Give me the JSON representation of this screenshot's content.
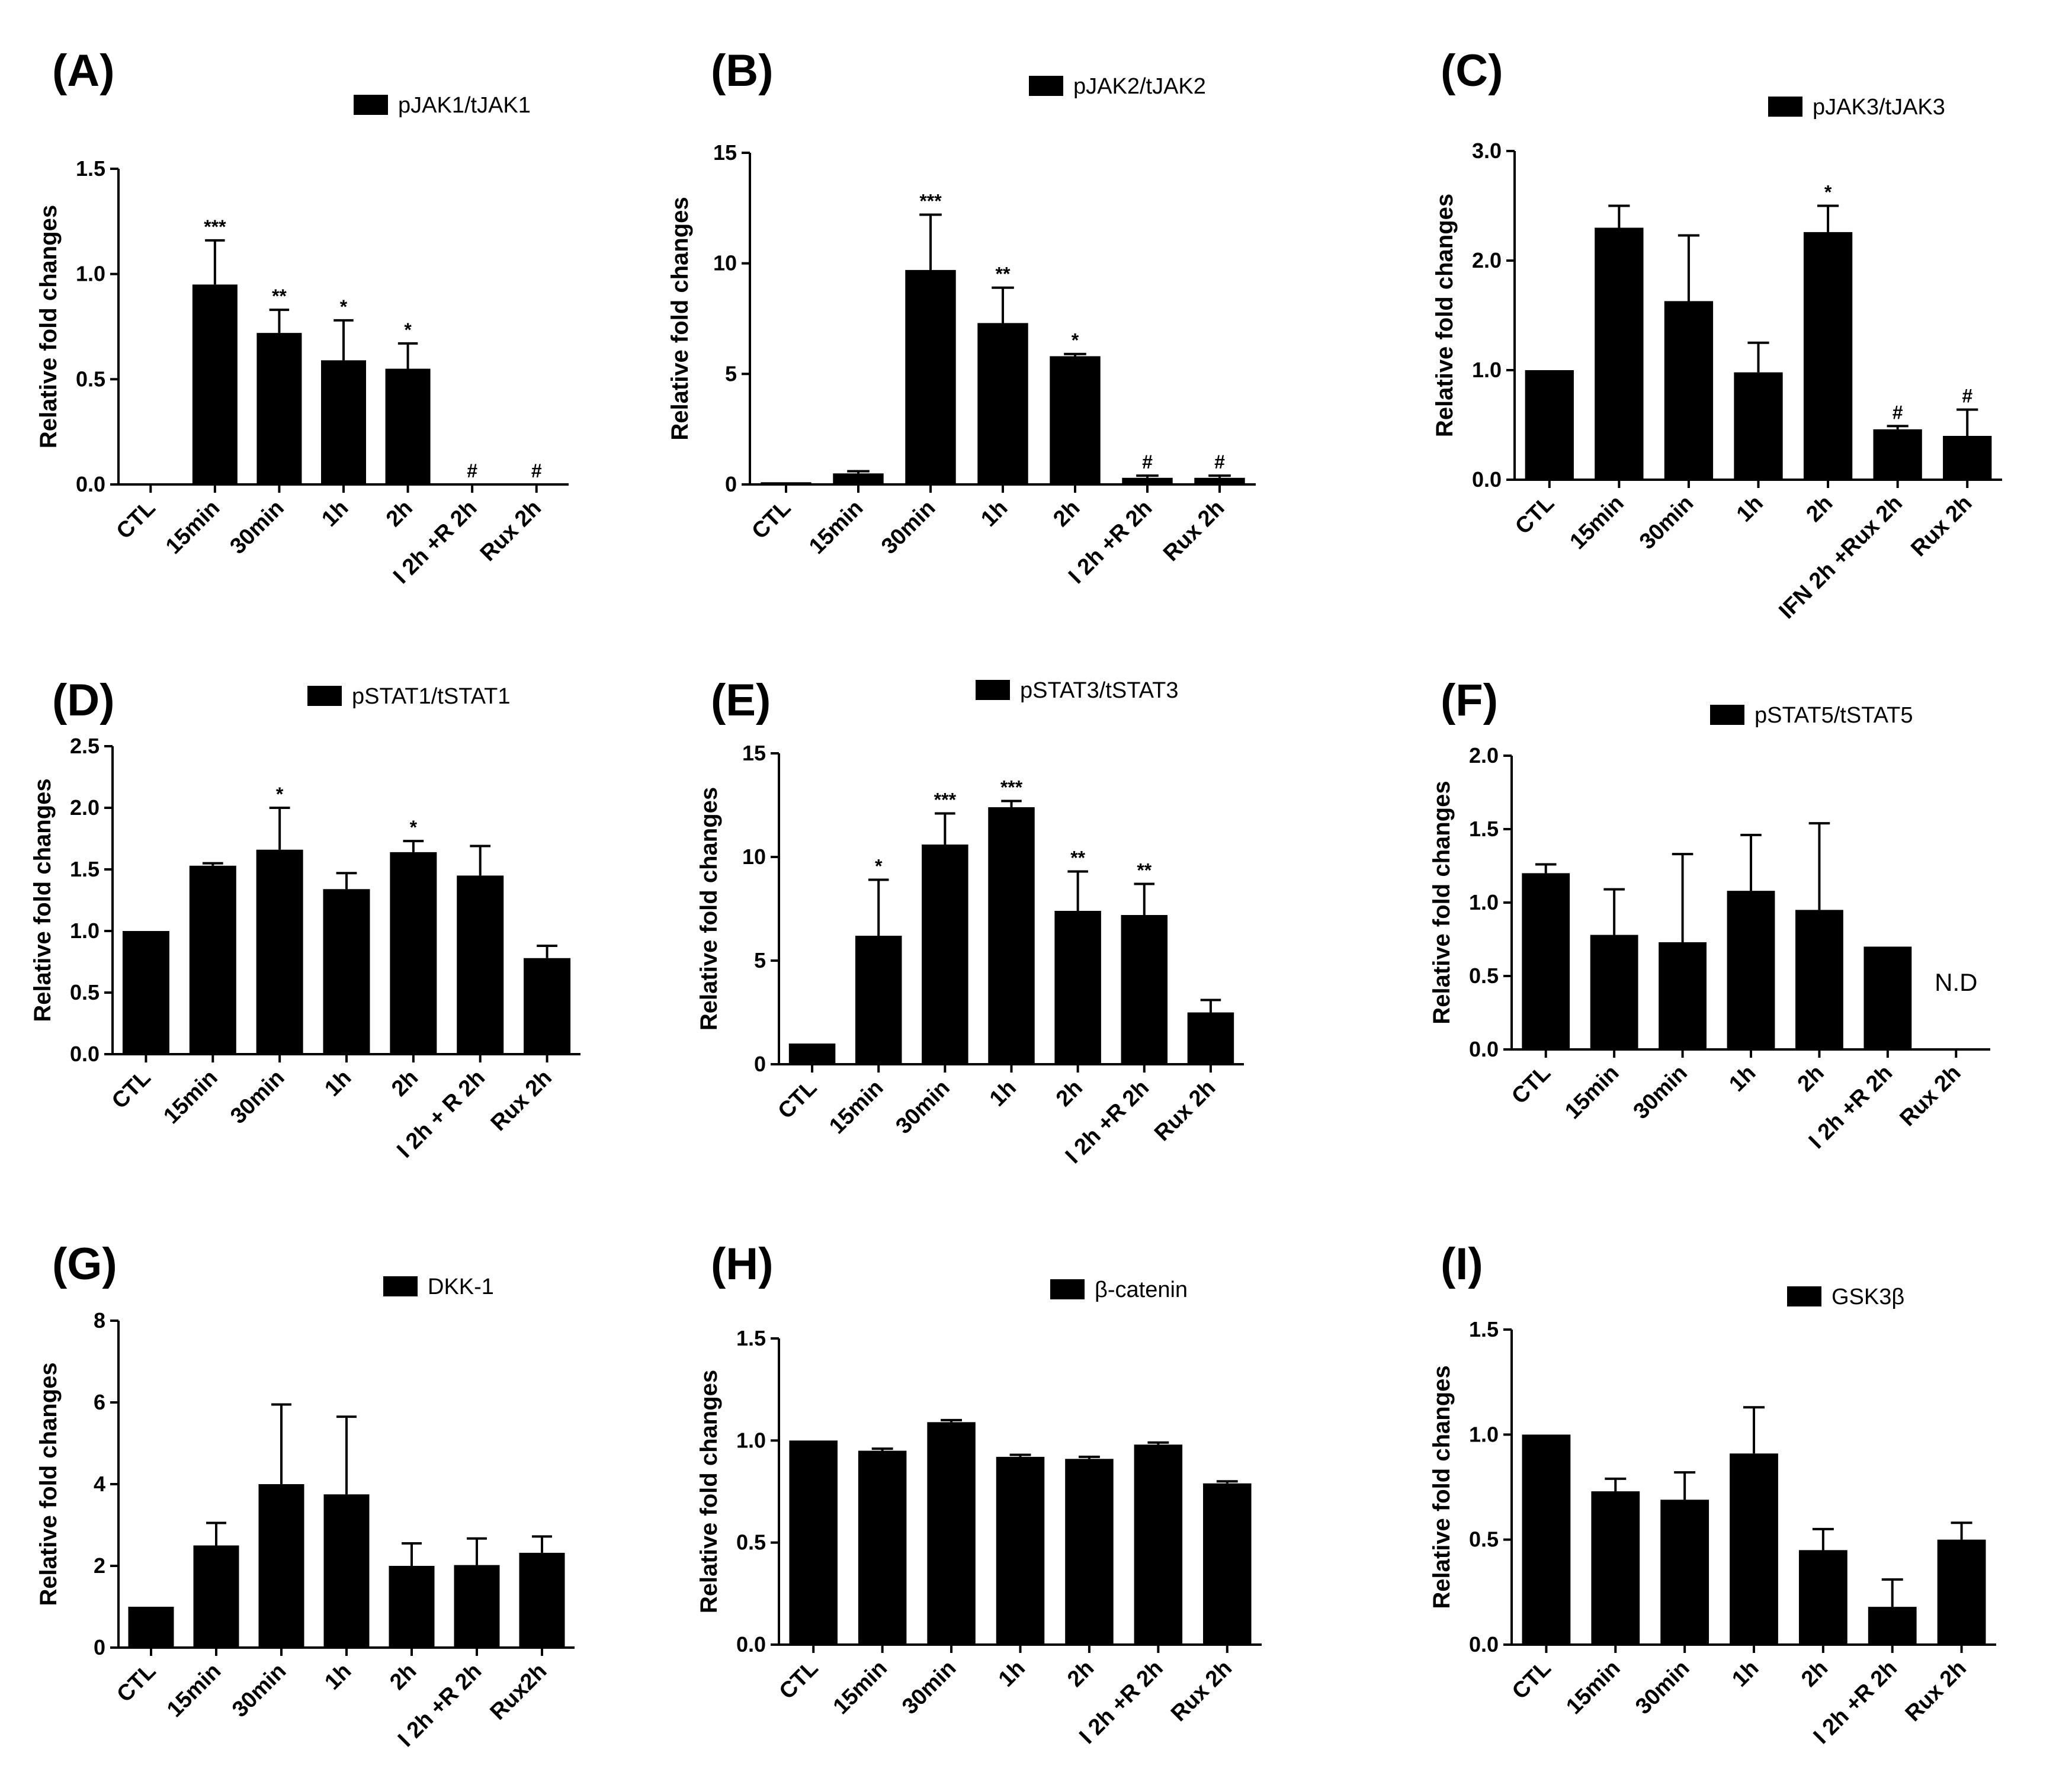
{
  "colors": {
    "bar": "#000000",
    "axis": "#000000",
    "background": "#ffffff"
  },
  "chart_data": [
    {
      "type": "bar",
      "panel": "(A)",
      "legend": "pJAK1/tJAK1",
      "ylabel": "Relative fold changes",
      "ylim": [
        0,
        1.5
      ],
      "yticks": [
        "0.0",
        "0.5",
        "1.0",
        "1.5"
      ],
      "ytick_values": [
        0,
        0.5,
        1.0,
        1.5
      ],
      "categories": [
        "CTL",
        "15min",
        "30min",
        "1h",
        "2h",
        "I 2h +R 2h",
        "Rux 2h"
      ],
      "values": [
        0,
        0.95,
        0.72,
        0.59,
        0.55,
        0,
        0
      ],
      "errors": [
        0,
        0.21,
        0.11,
        0.19,
        0.12,
        0,
        0
      ],
      "significance": [
        "",
        "***",
        "**",
        "*",
        "*",
        "#",
        "#"
      ]
    },
    {
      "type": "bar",
      "panel": "(B)",
      "legend": "pJAK2/tJAK2",
      "ylabel": "Relative fold changes",
      "ylim": [
        0,
        15
      ],
      "yticks": [
        "0",
        "5",
        "10",
        "15"
      ],
      "ytick_values": [
        0,
        5,
        10,
        15
      ],
      "categories": [
        "CTL",
        "15min",
        "30min",
        "1h",
        "2h",
        "I 2h +R 2h",
        "Rux 2h"
      ],
      "values": [
        0.1,
        0.5,
        9.7,
        7.3,
        5.8,
        0.3,
        0.3
      ],
      "errors": [
        0,
        0.1,
        2.5,
        1.6,
        0.1,
        0.1,
        0.1
      ],
      "significance": [
        "",
        "",
        "***",
        "**",
        "*",
        "#",
        "#"
      ]
    },
    {
      "type": "bar",
      "panel": "(C)",
      "legend": "pJAK3/tJAK3",
      "ylabel": "Relative fold changes",
      "ylim": [
        0,
        3.0
      ],
      "yticks": [
        "0.0",
        "1.0",
        "2.0",
        "3.0"
      ],
      "ytick_values": [
        0,
        1.0,
        2.0,
        3.0
      ],
      "categories": [
        "CTL",
        "15min",
        "30min",
        "1h",
        "2h",
        "IFN 2h +Rux 2h",
        "Rux 2h"
      ],
      "values": [
        1.0,
        2.3,
        1.63,
        0.98,
        2.26,
        0.46,
        0.4
      ],
      "errors": [
        0,
        0.2,
        0.6,
        0.27,
        0.24,
        0.03,
        0.24
      ],
      "significance": [
        "",
        "",
        "",
        "",
        "*",
        "#",
        "#"
      ]
    },
    {
      "type": "bar",
      "panel": "(D)",
      "legend": "pSTAT1/tSTAT1",
      "ylabel": "Relative fold changes",
      "ylim": [
        0,
        2.5
      ],
      "yticks": [
        "0.0",
        "0.5",
        "1.0",
        "1.5",
        "2.0",
        "2.5"
      ],
      "ytick_values": [
        0,
        0.5,
        1.0,
        1.5,
        2.0,
        2.5
      ],
      "categories": [
        "CTL",
        "15min",
        "30min",
        "1h",
        "2h",
        "I 2h + R 2h",
        "Rux 2h"
      ],
      "values": [
        1.0,
        1.53,
        1.66,
        1.34,
        1.64,
        1.45,
        0.78
      ],
      "errors": [
        0,
        0.02,
        0.34,
        0.13,
        0.09,
        0.24,
        0.1
      ],
      "significance": [
        "",
        "",
        "*",
        "",
        "*",
        "",
        ""
      ]
    },
    {
      "type": "bar",
      "panel": "(E)",
      "legend": "pSTAT3/tSTAT3",
      "ylabel": "Relative fold changes",
      "ylim": [
        0,
        15
      ],
      "yticks": [
        "0",
        "5",
        "10",
        "15"
      ],
      "ytick_values": [
        0,
        5,
        10,
        15
      ],
      "categories": [
        "CTL",
        "15min",
        "30min",
        "1h",
        "2h",
        "I 2h +R 2h",
        "Rux 2h"
      ],
      "values": [
        1.0,
        6.2,
        10.6,
        12.4,
        7.4,
        7.2,
        2.5
      ],
      "errors": [
        0,
        2.7,
        1.5,
        0.3,
        1.9,
        1.5,
        0.6
      ],
      "significance": [
        "",
        "*",
        "***",
        "***",
        "**",
        "**",
        ""
      ]
    },
    {
      "type": "bar",
      "panel": "(F)",
      "legend": "pSTAT5/tSTAT5",
      "ylabel": "Relative fold changes",
      "ylim": [
        0,
        2.0
      ],
      "yticks": [
        "0.0",
        "0.5",
        "1.0",
        "1.5",
        "2.0"
      ],
      "ytick_values": [
        0,
        0.5,
        1.0,
        1.5,
        2.0
      ],
      "categories": [
        "CTL",
        "15min",
        "30min",
        "1h",
        "2h",
        "I 2h +R 2h",
        "Rux 2h"
      ],
      "values": [
        1.2,
        0.78,
        0.73,
        1.08,
        0.95,
        0.7,
        0
      ],
      "errors": [
        0.06,
        0.31,
        0.6,
        0.38,
        0.59,
        0,
        0
      ],
      "significance": [
        "",
        "",
        "",
        "",
        "",
        "",
        ""
      ],
      "annotation": "N.D"
    },
    {
      "type": "bar",
      "panel": "(G)",
      "legend": "DKK-1",
      "ylabel": "Relative fold changes",
      "ylim": [
        0,
        8
      ],
      "yticks": [
        "0",
        "2",
        "4",
        "6",
        "8"
      ],
      "ytick_values": [
        0,
        2,
        4,
        6,
        8
      ],
      "categories": [
        "CTL",
        "15min",
        "30min",
        "1h",
        "2h",
        "I 2h +R 2h",
        "Rux2h"
      ],
      "values": [
        1.0,
        2.5,
        4.0,
        3.75,
        2.0,
        2.02,
        2.32
      ],
      "errors": [
        0,
        0.55,
        1.95,
        1.9,
        0.55,
        0.65,
        0.4
      ],
      "significance": [
        "",
        "",
        "",
        "",
        "",
        "",
        ""
      ]
    },
    {
      "type": "bar",
      "panel": "(H)",
      "legend": "β-catenin",
      "ylabel": "Relative fold changes",
      "ylim": [
        0,
        1.5
      ],
      "yticks": [
        "0.0",
        "0.5",
        "1.0",
        "1.5"
      ],
      "ytick_values": [
        0,
        0.5,
        1.0,
        1.5
      ],
      "categories": [
        "CTL",
        "15min",
        "30min",
        "1h",
        "2h",
        "I 2h +R 2h",
        "Rux 2h"
      ],
      "values": [
        1.0,
        0.95,
        1.09,
        0.92,
        0.91,
        0.98,
        0.79
      ],
      "errors": [
        0,
        0.01,
        0.01,
        0.01,
        0.01,
        0.01,
        0.01
      ],
      "significance": [
        "",
        "",
        "",
        "",
        "",
        "",
        ""
      ]
    },
    {
      "type": "bar",
      "panel": "(I)",
      "legend": "GSK3β",
      "ylabel": "Relative fold changes",
      "ylim": [
        0,
        1.5
      ],
      "yticks": [
        "0.0",
        "0.5",
        "1.0",
        "1.5"
      ],
      "ytick_values": [
        0,
        0.5,
        1.0,
        1.5
      ],
      "categories": [
        "CTL",
        "15min",
        "30min",
        "1h",
        "2h",
        "I 2h +R 2h",
        "Rux 2h"
      ],
      "values": [
        1.0,
        0.73,
        0.69,
        0.91,
        0.45,
        0.18,
        0.5
      ],
      "errors": [
        0,
        0.06,
        0.13,
        0.22,
        0.1,
        0.13,
        0.08
      ],
      "significance": [
        "",
        "",
        "",
        "",
        "",
        "",
        ""
      ]
    }
  ]
}
